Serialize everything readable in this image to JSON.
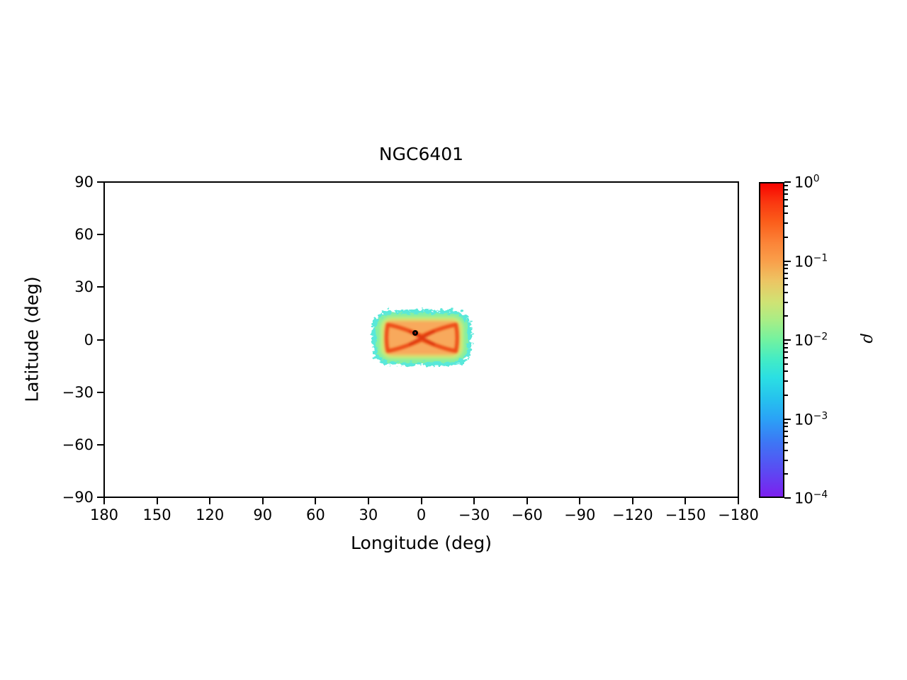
{
  "chart_data": {
    "type": "heatmap",
    "title": "NGC6401",
    "xlabel": "Longitude (deg)",
    "ylabel": "Latitude (deg)",
    "xlim": [
      180,
      -180
    ],
    "ylim": [
      -90,
      90
    ],
    "grid": false,
    "xticks": {
      "values": [
        180,
        150,
        120,
        90,
        60,
        30,
        0,
        -30,
        -60,
        -90,
        -120,
        -150,
        -180
      ],
      "labels": [
        "180",
        "150",
        "120",
        "90",
        "60",
        "30",
        "0",
        "−30",
        "−60",
        "−90",
        "−120",
        "−150",
        "−180"
      ]
    },
    "yticks": {
      "values": [
        90,
        60,
        30,
        0,
        -30,
        -60,
        -90
      ],
      "labels": [
        "90",
        "60",
        "30",
        "0",
        "−30",
        "−60",
        "−90"
      ]
    },
    "colorbar": {
      "label": "ρ",
      "scale": "log",
      "colormap": "rainbow",
      "vmin": 0.0001,
      "vmax": 1,
      "tick_base": "10",
      "tick_exponents": [
        "0",
        "−1",
        "−2",
        "−3",
        "−4"
      ],
      "gradient_stops": [
        {
          "pos": 0,
          "color": "#f80400"
        },
        {
          "pos": 6,
          "color": "#fa3710"
        },
        {
          "pos": 12,
          "color": "#fb5c1a"
        },
        {
          "pos": 19,
          "color": "#fb8438"
        },
        {
          "pos": 25,
          "color": "#f9a04b"
        },
        {
          "pos": 31,
          "color": "#edc463"
        },
        {
          "pos": 38,
          "color": "#cfe374"
        },
        {
          "pos": 44,
          "color": "#a6ee87"
        },
        {
          "pos": 50,
          "color": "#72f2a0"
        },
        {
          "pos": 56,
          "color": "#44ecc4"
        },
        {
          "pos": 62,
          "color": "#2bdfe3"
        },
        {
          "pos": 69,
          "color": "#26c1ee"
        },
        {
          "pos": 75,
          "color": "#2aa3f6"
        },
        {
          "pos": 82,
          "color": "#3b7af5"
        },
        {
          "pos": 91,
          "color": "#584ef3"
        },
        {
          "pos": 100,
          "color": "#7c20ee"
        }
      ]
    },
    "density_field": {
      "description": "Bar-shaped stellar density distribution centred near (0,0) with an X/bowtie high-density pattern, peach-orange interior and speckled cyan-green low-density fringe",
      "extent_lon": [
        31,
        -32
      ],
      "extent_lat": [
        20,
        -18
      ],
      "colors": {
        "fringe": "#3ce4d4",
        "outer_green": "#8af09c",
        "yellow_green": "#cdea75",
        "inner_peach": "#f8a95c",
        "dense_band": "#ed4e17",
        "core_cross": "#d93110"
      }
    },
    "marker": {
      "lon": 3.4,
      "lat": 4.0,
      "shape": "circle",
      "fill": "#fb2a12",
      "edge": "#000000"
    }
  }
}
